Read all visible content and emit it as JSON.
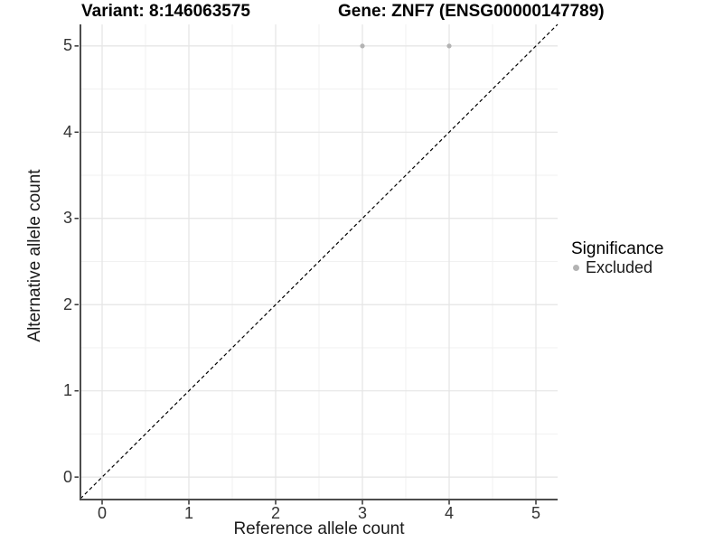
{
  "chart_data": {
    "type": "scatter",
    "title_variant": "Variant: 8:146063575",
    "title_gene": "Gene: ZNF7 (ENSG00000147789)",
    "xlabel": "Reference allele count",
    "ylabel": "Alternative allele count",
    "xlim": [
      -0.25,
      5.25
    ],
    "ylim": [
      -0.25,
      5.25
    ],
    "x_ticks": [
      0,
      1,
      2,
      3,
      4,
      5
    ],
    "y_ticks": [
      0,
      1,
      2,
      3,
      4,
      5
    ],
    "minor_ticks_x": [
      0.5,
      1.5,
      2.5,
      3.5,
      4.5
    ],
    "minor_ticks_y": [
      0.5,
      1.5,
      2.5,
      3.5,
      4.5
    ],
    "grid": true,
    "series": [
      {
        "name": "Excluded",
        "color": "#b3b3b3",
        "points": [
          {
            "x": 3,
            "y": 5
          },
          {
            "x": 4,
            "y": 5
          }
        ]
      }
    ],
    "identity_line": {
      "style": "dashed",
      "from": [
        -0.25,
        -0.25
      ],
      "to": [
        5.25,
        5.25
      ],
      "color": "#000000"
    },
    "legend": {
      "title": "Significance",
      "position": "right",
      "items": [
        {
          "label": "Excluded",
          "color": "#b3b3b3"
        }
      ]
    }
  },
  "colors": {
    "background": "#ffffff",
    "grid_major": "#e4e4e4",
    "grid_minor": "#f1f1f1",
    "axis_line": "#4d4d4d",
    "tick_mark": "#333333",
    "point": "#b3b3b3",
    "identity_line": "#000000"
  }
}
